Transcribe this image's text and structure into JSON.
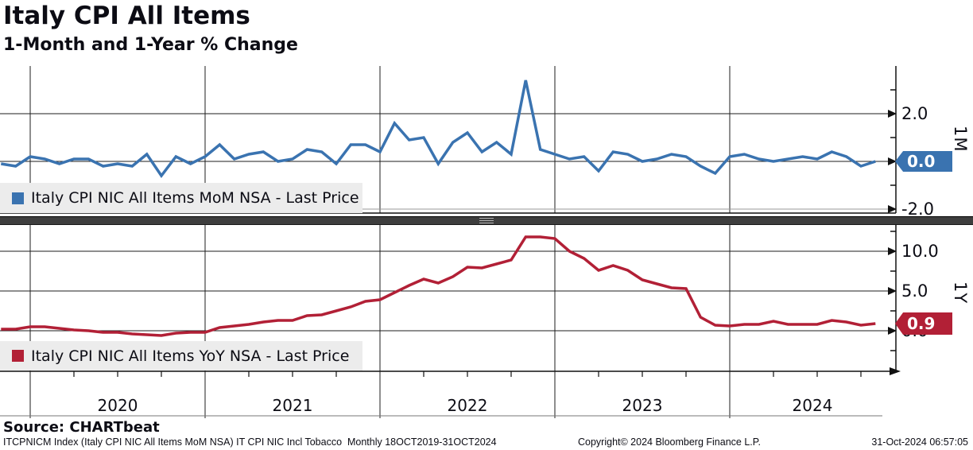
{
  "header": {
    "title": "Italy CPI All Items",
    "subtitle": "1-Month and 1-Year % Change"
  },
  "source": "Source: CHARTbeat",
  "footer": {
    "left": "ITCPNICM Index (Italy CPI NIC All Items MoM NSA) IT CPI NIC Incl Tobacco  Monthly 18OCT2019-31OCT2024",
    "center": "Copyright© 2024 Bloomberg Finance L.P.",
    "right": "31-Oct-2024 06:57:05"
  },
  "xaxis": {
    "year_labels": [
      "2020",
      "2021",
      "2022",
      "2023",
      "2024"
    ]
  },
  "chart_data": [
    {
      "type": "line",
      "panel": "top",
      "panel_label": "1M",
      "name": "Italy CPI NIC All Items MoM NSA - Last Price",
      "color": "#3a73b0",
      "period": "monthly",
      "start": "2019-10",
      "end": "2024-10",
      "ylim": [
        -2.2,
        4.0
      ],
      "yticks": [
        2.0,
        0.0,
        -2.0
      ],
      "ytick_labels": [
        "2.0",
        "0.0",
        "-2.0"
      ],
      "minor_tick_step": 1.0,
      "grid": "on",
      "legend_position": "bottom-left",
      "last_price": 0.0,
      "last_price_label": "0.0",
      "values": [
        -0.1,
        -0.2,
        0.2,
        0.1,
        -0.1,
        0.1,
        0.1,
        -0.2,
        -0.1,
        -0.2,
        0.3,
        -0.6,
        0.2,
        -0.1,
        0.2,
        0.7,
        0.1,
        0.3,
        0.4,
        0.0,
        0.1,
        0.5,
        0.4,
        -0.1,
        0.7,
        0.7,
        0.4,
        1.6,
        0.9,
        1.0,
        -0.1,
        0.8,
        1.2,
        0.4,
        0.8,
        0.3,
        3.4,
        0.5,
        0.3,
        0.1,
        0.2,
        -0.4,
        0.4,
        0.3,
        0.0,
        0.1,
        0.3,
        0.2,
        -0.2,
        -0.5,
        0.2,
        0.3,
        0.1,
        0.0,
        0.1,
        0.2,
        0.1,
        0.4,
        0.2,
        -0.2,
        0.0
      ]
    },
    {
      "type": "line",
      "panel": "bottom",
      "panel_label": "1Y",
      "name": "Italy CPI NIC All Items YoY NSA - Last Price",
      "color": "#b22036",
      "period": "monthly",
      "start": "2019-10",
      "end": "2024-10",
      "ylim": [
        -5.1,
        13.3
      ],
      "yticks": [
        10.0,
        5.0,
        0.0
      ],
      "ytick_labels": [
        "10.0",
        "5.0",
        "0.0"
      ],
      "minor_tick_step": 2.5,
      "grid": "on",
      "legend_position": "bottom-left",
      "last_price": 0.9,
      "last_price_label": "0.9",
      "values": [
        0.2,
        0.2,
        0.5,
        0.5,
        0.3,
        0.1,
        0.0,
        -0.2,
        -0.2,
        -0.4,
        -0.5,
        -0.6,
        -0.3,
        -0.2,
        -0.2,
        0.4,
        0.6,
        0.8,
        1.1,
        1.3,
        1.3,
        1.9,
        2.0,
        2.5,
        3.0,
        3.7,
        3.9,
        4.8,
        5.7,
        6.5,
        6.0,
        6.8,
        8.0,
        7.9,
        8.4,
        8.9,
        11.8,
        11.8,
        11.6,
        10.0,
        9.1,
        7.6,
        8.2,
        7.6,
        6.4,
        5.9,
        5.4,
        5.3,
        1.7,
        0.7,
        0.6,
        0.8,
        0.8,
        1.2,
        0.8,
        0.8,
        0.8,
        1.3,
        1.1,
        0.7,
        0.9
      ]
    }
  ]
}
